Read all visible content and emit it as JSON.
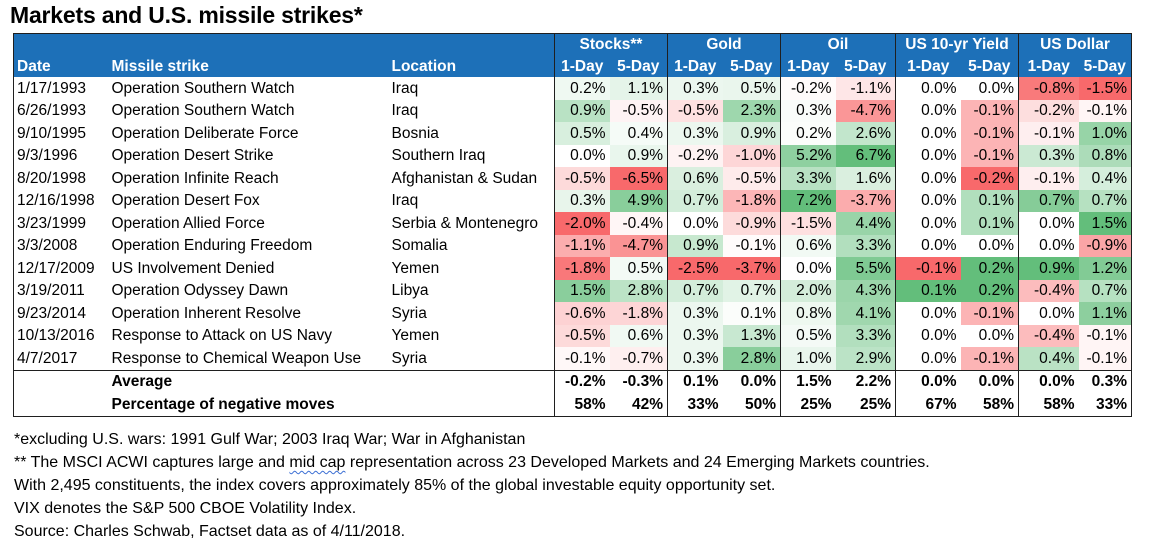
{
  "chart_data": {
    "type": "table",
    "title": "Markets and U.S. missile strikes*",
    "groups": [
      "Stocks**",
      "Gold",
      "Oil",
      "US 10-yr Yield",
      "US Dollar"
    ],
    "col_headers": [
      "Date",
      "Missile strike",
      "Location"
    ],
    "sub_headers": [
      "1-Day",
      "5-Day"
    ],
    "rows": [
      {
        "date": "1/17/1993",
        "strike": "Operation Southern Watch",
        "location": "Iraq",
        "values": [
          0.2,
          1.1,
          0.3,
          0.5,
          -0.2,
          -1.1,
          0.0,
          0.0,
          -0.8,
          -1.5
        ]
      },
      {
        "date": "6/26/1993",
        "strike": "Operation Southern Watch",
        "location": "Iraq",
        "values": [
          0.9,
          -0.5,
          -0.5,
          2.3,
          0.3,
          -4.7,
          0.0,
          -0.1,
          -0.2,
          -0.1
        ]
      },
      {
        "date": "9/10/1995",
        "strike": "Operation Deliberate Force",
        "location": "Bosnia",
        "values": [
          0.5,
          0.4,
          0.3,
          0.9,
          0.2,
          2.6,
          0.0,
          -0.1,
          -0.1,
          1.0
        ]
      },
      {
        "date": "9/3/1996",
        "strike": "Operation Desert Strike",
        "location": "Southern Iraq",
        "values": [
          0.0,
          0.9,
          -0.2,
          -1.0,
          5.2,
          6.7,
          0.0,
          -0.1,
          0.3,
          0.8
        ]
      },
      {
        "date": "8/20/1998",
        "strike": "Operation Infinite Reach",
        "location": "Afghanistan & Sudan",
        "values": [
          -0.5,
          -6.5,
          0.6,
          -0.5,
          3.3,
          1.6,
          0.0,
          -0.2,
          -0.1,
          0.4
        ]
      },
      {
        "date": "12/16/1998",
        "strike": "Operation Desert Fox",
        "location": "Iraq",
        "values": [
          0.3,
          4.9,
          0.7,
          -1.8,
          7.2,
          -3.7,
          0.0,
          0.1,
          0.7,
          0.7
        ]
      },
      {
        "date": "3/23/1999",
        "strike": "Operation Allied Force",
        "location": "Serbia & Montenegro",
        "values": [
          -2.0,
          -0.4,
          0.0,
          -0.9,
          -1.5,
          4.4,
          0.0,
          0.1,
          0.0,
          1.5
        ]
      },
      {
        "date": "3/3/2008",
        "strike": "Operation Enduring Freedom",
        "location": "Somalia",
        "values": [
          -1.1,
          -4.7,
          0.9,
          -0.1,
          0.6,
          3.3,
          0.0,
          0.0,
          0.0,
          -0.9
        ]
      },
      {
        "date": "12/17/2009",
        "strike": "US Involvement Denied",
        "location": "Yemen",
        "values": [
          -1.8,
          0.5,
          -2.5,
          -3.7,
          0.0,
          5.5,
          -0.1,
          0.2,
          0.9,
          1.2
        ]
      },
      {
        "date": "3/19/2011",
        "strike": "Operation Odyssey Dawn",
        "location": "Libya",
        "values": [
          1.5,
          2.8,
          0.7,
          0.7,
          2.0,
          4.3,
          0.1,
          0.2,
          -0.4,
          0.7
        ]
      },
      {
        "date": "9/23/2014",
        "strike": "Operation Inherent Resolve",
        "location": "Syria",
        "values": [
          -0.6,
          -1.8,
          0.3,
          0.1,
          0.8,
          4.1,
          0.0,
          -0.1,
          0.0,
          1.1
        ]
      },
      {
        "date": "10/13/2016",
        "strike": "Response to Attack on US Navy",
        "location": "Yemen",
        "values": [
          -0.5,
          0.6,
          0.3,
          1.3,
          0.5,
          3.3,
          0.0,
          0.0,
          -0.4,
          -0.1
        ]
      },
      {
        "date": "4/7/2017",
        "strike": "Response to Chemical Weapon Use",
        "location": "Syria",
        "values": [
          -0.1,
          -0.7,
          0.3,
          2.8,
          1.0,
          2.9,
          0.0,
          -0.1,
          0.4,
          -0.1
        ]
      }
    ],
    "summary": [
      {
        "label": "Average",
        "values": [
          "-0.2%",
          "-0.3%",
          "0.1%",
          "0.0%",
          "1.5%",
          "2.2%",
          "0.0%",
          "0.0%",
          "0.0%",
          "0.3%"
        ]
      },
      {
        "label": "Percentage of negative moves",
        "values": [
          "58%",
          "42%",
          "33%",
          "50%",
          "25%",
          "25%",
          "67%",
          "58%",
          "58%",
          "33%"
        ]
      }
    ],
    "colors": {
      "header_bg": "#1d70b8",
      "positive": "#63be7b",
      "negative": "#f8696b",
      "neutral": "#ffffff"
    }
  },
  "notes": {
    "line1": "*excluding U.S. wars: 1991 Gulf War; 2003 Iraq War; War in Afghanistan",
    "line2_pre": "** The MSCI ACWI captures large and ",
    "line2_squig": "mid cap",
    "line2_post": " representation  across 23 Developed Markets and 24 Emerging Markets countries.",
    "line3": "With 2,495 constituents, the index covers approximately 85% of the global investable equity opportunity set.",
    "line4": "VIX denotes the S&P 500 CBOE Volatility Index.",
    "line5": "Source: Charles Schwab, Factset data as of 4/11/2018."
  }
}
